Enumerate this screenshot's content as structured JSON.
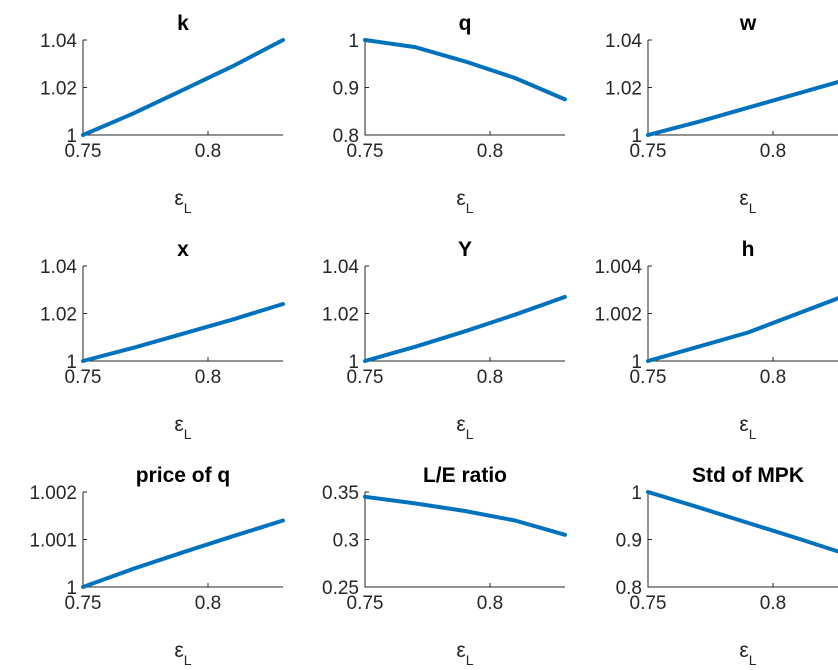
{
  "chart_data": [
    {
      "type": "line",
      "title": "k",
      "xlabel": "ε_L",
      "xlabel_base": "ε",
      "xlabel_sub": "L",
      "xlim": [
        0.75,
        0.83
      ],
      "ylim": [
        1,
        1.04
      ],
      "xticks": [
        "0.75",
        "0.8"
      ],
      "yticks": [
        "1",
        "1.02",
        "1.04"
      ],
      "series": [
        {
          "x": [
            0.75,
            0.77,
            0.79,
            0.81,
            0.83
          ],
          "values": [
            1.0,
            1.009,
            1.019,
            1.029,
            1.04
          ]
        }
      ]
    },
    {
      "type": "line",
      "title": "q",
      "xlabel": "ε_L",
      "xlabel_base": "ε",
      "xlabel_sub": "L",
      "xlim": [
        0.75,
        0.83
      ],
      "ylim": [
        0.8,
        1
      ],
      "xticks": [
        "0.75",
        "0.8"
      ],
      "yticks": [
        "0.8",
        "0.9",
        "1"
      ],
      "series": [
        {
          "x": [
            0.75,
            0.77,
            0.79,
            0.81,
            0.83
          ],
          "values": [
            1.0,
            0.985,
            0.955,
            0.92,
            0.875
          ]
        }
      ]
    },
    {
      "type": "line",
      "title": "w",
      "xlabel": "ε_L",
      "xlabel_base": "ε",
      "xlabel_sub": "L",
      "xlim": [
        0.75,
        0.83
      ],
      "ylim": [
        1,
        1.04
      ],
      "xticks": [
        "0.75",
        "0.8"
      ],
      "yticks": [
        "1",
        "1.02",
        "1.04"
      ],
      "series": [
        {
          "x": [
            0.75,
            0.77,
            0.79,
            0.81,
            0.83
          ],
          "values": [
            1.0,
            1.0055,
            1.0115,
            1.0175,
            1.0235
          ]
        }
      ]
    },
    {
      "type": "line",
      "title": "x",
      "xlabel": "ε_L",
      "xlabel_base": "ε",
      "xlabel_sub": "L",
      "xlim": [
        0.75,
        0.83
      ],
      "ylim": [
        1,
        1.04
      ],
      "xticks": [
        "0.75",
        "0.8"
      ],
      "yticks": [
        "1",
        "1.02",
        "1.04"
      ],
      "series": [
        {
          "x": [
            0.75,
            0.77,
            0.79,
            0.81,
            0.83
          ],
          "values": [
            1.0,
            1.0055,
            1.0115,
            1.0175,
            1.024
          ]
        }
      ]
    },
    {
      "type": "line",
      "title": "Y",
      "xlabel": "ε_L",
      "xlabel_base": "ε",
      "xlabel_sub": "L",
      "xlim": [
        0.75,
        0.83
      ],
      "ylim": [
        1,
        1.04
      ],
      "xticks": [
        "0.75",
        "0.8"
      ],
      "yticks": [
        "1",
        "1.02",
        "1.04"
      ],
      "series": [
        {
          "x": [
            0.75,
            0.77,
            0.79,
            0.81,
            0.83
          ],
          "values": [
            1.0,
            1.006,
            1.0125,
            1.0195,
            1.027
          ]
        }
      ]
    },
    {
      "type": "line",
      "title": "h",
      "xlabel": "ε_L",
      "xlabel_base": "ε",
      "xlabel_sub": "L",
      "xlim": [
        0.75,
        0.83
      ],
      "ylim": [
        1,
        1.004
      ],
      "xticks": [
        "0.75",
        "0.8"
      ],
      "yticks": [
        "1",
        "1.002",
        "1.004"
      ],
      "series": [
        {
          "x": [
            0.75,
            0.77,
            0.79,
            0.81,
            0.83
          ],
          "values": [
            1.0,
            1.0006,
            1.0012,
            1.002,
            1.0028
          ]
        }
      ]
    },
    {
      "type": "line",
      "title": "price of q",
      "xlabel": "ε_L",
      "xlabel_base": "ε",
      "xlabel_sub": "L",
      "xlim": [
        0.75,
        0.83
      ],
      "ylim": [
        1,
        1.002
      ],
      "xticks": [
        "0.75",
        "0.8"
      ],
      "yticks": [
        "1",
        "1.001",
        "1.002"
      ],
      "series": [
        {
          "x": [
            0.75,
            0.77,
            0.79,
            0.81,
            0.83
          ],
          "values": [
            1.0,
            1.00038,
            1.00073,
            1.00107,
            1.0014
          ]
        }
      ]
    },
    {
      "type": "line",
      "title": "L/E ratio",
      "xlabel": "ε_L",
      "xlabel_base": "ε",
      "xlabel_sub": "L",
      "xlim": [
        0.75,
        0.83
      ],
      "ylim": [
        0.25,
        0.35
      ],
      "xticks": [
        "0.75",
        "0.8"
      ],
      "yticks": [
        "0.25",
        "0.3",
        "0.35"
      ],
      "series": [
        {
          "x": [
            0.75,
            0.77,
            0.79,
            0.81,
            0.83
          ],
          "values": [
            0.345,
            0.338,
            0.33,
            0.32,
            0.305
          ]
        }
      ]
    },
    {
      "type": "line",
      "title": "Std of MPK",
      "xlabel": "ε_L",
      "xlabel_base": "ε",
      "xlabel_sub": "L",
      "xlim": [
        0.75,
        0.83
      ],
      "ylim": [
        0.8,
        1
      ],
      "xticks": [
        "0.75",
        "0.8"
      ],
      "yticks": [
        "0.8",
        "0.9",
        "1"
      ],
      "series": [
        {
          "x": [
            0.75,
            0.77,
            0.79,
            0.81,
            0.83
          ],
          "values": [
            1.0,
            0.968,
            0.935,
            0.902,
            0.868
          ]
        }
      ]
    }
  ],
  "line_color": "#0072BD"
}
